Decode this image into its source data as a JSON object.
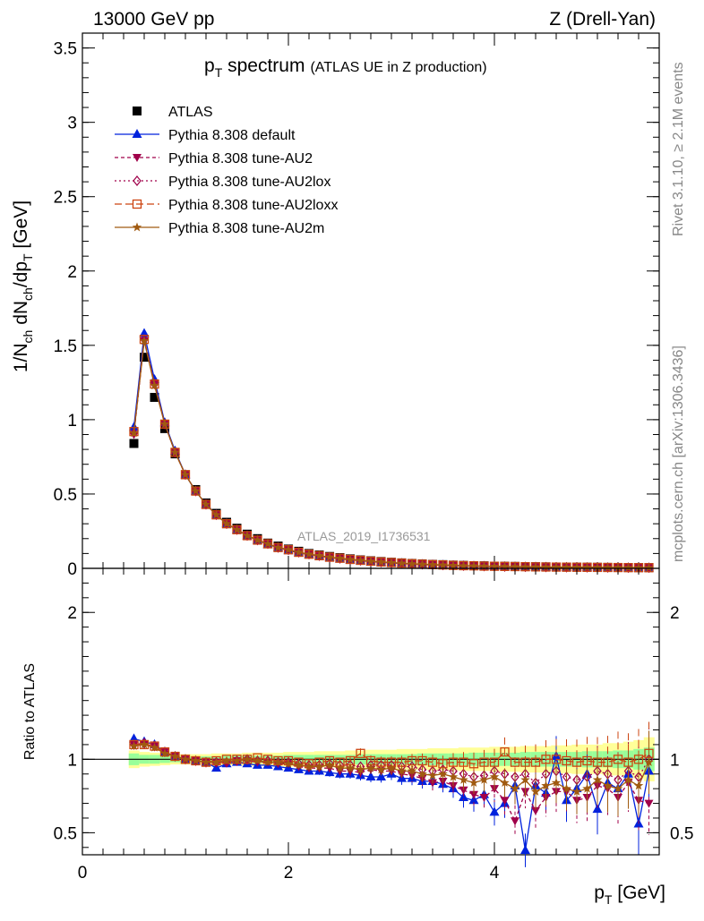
{
  "header": {
    "left": "13000 GeV pp",
    "right": "Z (Drell-Yan)"
  },
  "side_labels": {
    "rivet": "Rivet 3.1.10, ≥ 2.1M events",
    "mcplots": "mcplots.cern.ch [arXiv:1306.3436]"
  },
  "watermark": "ATLAS_2019_I1736531",
  "ratio_ylabel": "Ratio to ATLAS",
  "colors": {
    "atlas": "#000000",
    "default": "#0022dd",
    "au2": "#a0004a",
    "au2lox": "#a0004a",
    "au2loxx": "#cc4411",
    "au2m": "#a05a10",
    "band_inner": "#99ff99",
    "band_outer": "#ffff99"
  },
  "chart_data": [
    {
      "type": "line",
      "title": "p_T spectrum",
      "title_text": {
        "main": "p",
        "main_sub": "T",
        "main_rest": " spectrum",
        "detail": "(ATLAS UE in Z production)"
      },
      "xlabel": "p_T [GeV]",
      "xlabel_text": {
        "main": "p",
        "sub": "T",
        "rest": " [GeV]"
      },
      "ylabel": "1/N_ch dN_ch/dp_T [GeV]",
      "ylabel_text": {
        "p1": "1/N",
        "s1": "ch",
        "p2": " dN",
        "s2": "ch",
        "p3": "/dp",
        "s3": "T",
        "p4": " [GeV]"
      },
      "xlim": [
        0,
        5.6
      ],
      "ylim": [
        0,
        3.6
      ],
      "xticks": [
        "0",
        "2",
        "4"
      ],
      "yticks": [
        "0",
        "0.5",
        "1",
        "1.5",
        "2",
        "2.5",
        "3",
        "3.5"
      ],
      "legend_placement": "top-left",
      "x": [
        0.5,
        0.6,
        0.7,
        0.8,
        0.9,
        1.0,
        1.1,
        1.2,
        1.3,
        1.4,
        1.5,
        1.6,
        1.7,
        1.8,
        1.9,
        2.0,
        2.1,
        2.2,
        2.3,
        2.4,
        2.5,
        2.6,
        2.7,
        2.8,
        2.9,
        3.0,
        3.1,
        3.2,
        3.3,
        3.4,
        3.5,
        3.6,
        3.7,
        3.8,
        3.9,
        4.0,
        4.1,
        4.2,
        4.3,
        4.4,
        4.5,
        4.6,
        4.7,
        4.8,
        4.9,
        5.0,
        5.1,
        5.2,
        5.3,
        5.4,
        5.5
      ],
      "series": [
        {
          "name": "ATLAS",
          "values": [
            0.84,
            1.42,
            1.15,
            0.94,
            0.77,
            0.63,
            0.53,
            0.44,
            0.37,
            0.31,
            0.27,
            0.23,
            0.2,
            0.17,
            0.15,
            0.13,
            0.115,
            0.1,
            0.09,
            0.08,
            0.072,
            0.064,
            0.057,
            0.051,
            0.046,
            0.041,
            0.037,
            0.033,
            0.03,
            0.027,
            0.025,
            0.022,
            0.02,
            0.018,
            0.017,
            0.015,
            0.014,
            0.013,
            0.012,
            0.011,
            0.01,
            0.009,
            0.0085,
            0.008,
            0.0075,
            0.007,
            0.0065,
            0.006,
            0.0055,
            0.005,
            0.0048
          ]
        },
        {
          "name": "Pythia 8.308 default",
          "values": [
            0.95,
            1.58,
            1.27,
            0.98,
            0.79,
            0.63,
            0.52,
            0.43,
            0.36,
            0.3,
            0.26,
            0.22,
            0.19,
            0.16,
            0.14,
            0.12,
            0.105,
            0.092,
            0.082,
            0.072,
            0.064,
            0.057,
            0.051,
            0.045,
            0.04,
            0.036,
            0.032,
            0.029,
            0.026,
            0.023,
            0.021,
            0.018,
            0.016,
            0.015,
            0.013,
            0.012,
            0.011,
            0.01,
            0.009,
            0.008,
            0.0075,
            0.007,
            0.0065,
            0.006,
            0.0055,
            0.005,
            0.0048,
            0.0045,
            0.004,
            0.0038,
            0.0035
          ]
        },
        {
          "name": "Pythia 8.308 tune-AU2",
          "values": [
            0.9,
            1.53,
            1.24,
            0.97,
            0.78,
            0.63,
            0.52,
            0.43,
            0.36,
            0.3,
            0.26,
            0.22,
            0.19,
            0.165,
            0.14,
            0.125,
            0.108,
            0.095,
            0.085,
            0.075,
            0.067,
            0.059,
            0.053,
            0.047,
            0.042,
            0.038,
            0.034,
            0.03,
            0.027,
            0.024,
            0.022,
            0.019,
            0.017,
            0.016,
            0.014,
            0.013,
            0.012,
            0.011,
            0.01,
            0.009,
            0.0085,
            0.008,
            0.007,
            0.0065,
            0.006,
            0.0055,
            0.005,
            0.0048,
            0.0045,
            0.004,
            0.0038
          ]
        },
        {
          "name": "Pythia 8.308 tune-AU2lox",
          "values": [
            0.91,
            1.54,
            1.24,
            0.97,
            0.78,
            0.63,
            0.52,
            0.43,
            0.36,
            0.3,
            0.26,
            0.22,
            0.19,
            0.165,
            0.14,
            0.125,
            0.108,
            0.095,
            0.085,
            0.075,
            0.067,
            0.06,
            0.053,
            0.047,
            0.042,
            0.038,
            0.034,
            0.03,
            0.027,
            0.024,
            0.022,
            0.02,
            0.018,
            0.016,
            0.015,
            0.013,
            0.012,
            0.011,
            0.01,
            0.0095,
            0.0088,
            0.008,
            0.0075,
            0.007,
            0.0065,
            0.006,
            0.0055,
            0.005,
            0.0046,
            0.0042,
            0.004
          ]
        },
        {
          "name": "Pythia 8.308 tune-AU2loxx",
          "values": [
            0.92,
            1.54,
            1.24,
            0.97,
            0.78,
            0.63,
            0.52,
            0.43,
            0.36,
            0.3,
            0.26,
            0.22,
            0.19,
            0.165,
            0.14,
            0.125,
            0.108,
            0.095,
            0.085,
            0.075,
            0.068,
            0.06,
            0.054,
            0.048,
            0.043,
            0.039,
            0.035,
            0.031,
            0.028,
            0.025,
            0.023,
            0.02,
            0.018,
            0.017,
            0.015,
            0.014,
            0.013,
            0.012,
            0.011,
            0.01,
            0.009,
            0.0085,
            0.008,
            0.0075,
            0.007,
            0.0065,
            0.006,
            0.0055,
            0.005,
            0.0046,
            0.0044
          ]
        },
        {
          "name": "Pythia 8.308 tune-AU2m",
          "values": [
            0.91,
            1.53,
            1.23,
            0.97,
            0.78,
            0.63,
            0.52,
            0.43,
            0.36,
            0.3,
            0.26,
            0.22,
            0.19,
            0.165,
            0.14,
            0.125,
            0.108,
            0.095,
            0.085,
            0.075,
            0.067,
            0.059,
            0.053,
            0.047,
            0.042,
            0.038,
            0.034,
            0.03,
            0.027,
            0.024,
            0.022,
            0.019,
            0.017,
            0.016,
            0.014,
            0.013,
            0.012,
            0.011,
            0.01,
            0.009,
            0.0085,
            0.008,
            0.0072,
            0.0068,
            0.0062,
            0.0058,
            0.0053,
            0.005,
            0.0046,
            0.0042,
            0.004
          ]
        }
      ]
    },
    {
      "type": "line",
      "title": "",
      "xlabel": "p_T [GeV]",
      "ylabel": "Ratio to ATLAS",
      "xlim": [
        0,
        5.6
      ],
      "ylim": [
        0.35,
        2.3
      ],
      "xticks": [
        "0",
        "2",
        "4"
      ],
      "yticks": [
        "0.5",
        "1",
        "2"
      ],
      "reference_line": 1,
      "x": [
        0.5,
        0.6,
        0.7,
        0.8,
        0.9,
        1.0,
        1.1,
        1.2,
        1.3,
        1.4,
        1.5,
        1.6,
        1.7,
        1.8,
        1.9,
        2.0,
        2.1,
        2.2,
        2.3,
        2.4,
        2.5,
        2.6,
        2.7,
        2.8,
        2.9,
        3.0,
        3.1,
        3.2,
        3.3,
        3.4,
        3.5,
        3.6,
        3.7,
        3.8,
        3.9,
        4.0,
        4.1,
        4.2,
        4.3,
        4.4,
        4.5,
        4.6,
        4.7,
        4.8,
        4.9,
        5.0,
        5.1,
        5.2,
        5.3,
        5.4,
        5.5
      ],
      "band_inner_halfwidth": [
        0.04,
        0.03,
        0.03,
        0.025,
        0.02,
        0.02,
        0.02,
        0.02,
        0.02,
        0.025,
        0.025,
        0.025,
        0.025,
        0.025,
        0.025,
        0.03,
        0.03,
        0.03,
        0.03,
        0.03,
        0.03,
        0.03,
        0.035,
        0.035,
        0.035,
        0.035,
        0.035,
        0.035,
        0.04,
        0.04,
        0.04,
        0.04,
        0.04,
        0.045,
        0.045,
        0.045,
        0.045,
        0.045,
        0.05,
        0.05,
        0.05,
        0.05,
        0.05,
        0.05,
        0.055,
        0.055,
        0.055,
        0.06,
        0.06,
        0.07,
        0.08
      ],
      "band_outer_halfwidth": [
        0.06,
        0.05,
        0.045,
        0.04,
        0.035,
        0.035,
        0.035,
        0.035,
        0.04,
        0.04,
        0.04,
        0.045,
        0.045,
        0.045,
        0.045,
        0.05,
        0.05,
        0.05,
        0.055,
        0.055,
        0.055,
        0.06,
        0.06,
        0.065,
        0.065,
        0.065,
        0.07,
        0.07,
        0.07,
        0.075,
        0.075,
        0.075,
        0.08,
        0.08,
        0.08,
        0.085,
        0.085,
        0.085,
        0.09,
        0.09,
        0.09,
        0.095,
        0.095,
        0.1,
        0.1,
        0.1,
        0.11,
        0.11,
        0.12,
        0.13,
        0.15
      ],
      "series": [
        {
          "name": "Pythia 8.308 default",
          "values": [
            1.14,
            1.12,
            1.1,
            1.05,
            1.02,
            1.0,
            0.99,
            0.98,
            0.94,
            0.97,
            0.98,
            0.97,
            0.96,
            0.96,
            0.95,
            0.94,
            0.93,
            0.92,
            0.92,
            0.91,
            0.9,
            0.9,
            0.89,
            0.88,
            0.88,
            0.9,
            0.87,
            0.87,
            0.85,
            0.85,
            0.83,
            0.8,
            0.74,
            0.72,
            0.76,
            0.64,
            0.7,
            0.82,
            0.38,
            0.82,
            0.77,
            1.02,
            0.72,
            0.8,
            0.9,
            0.66,
            0.84,
            0.8,
            0.9,
            0.56,
            0.92
          ]
        },
        {
          "name": "Pythia 8.308 tune-AU2",
          "values": [
            1.1,
            1.1,
            1.09,
            1.05,
            1.02,
            1.0,
            0.99,
            0.98,
            0.98,
            0.98,
            0.99,
            0.99,
            0.98,
            0.98,
            0.97,
            0.97,
            0.95,
            0.94,
            0.94,
            0.94,
            0.92,
            0.92,
            0.91,
            0.93,
            0.92,
            0.92,
            0.9,
            0.89,
            0.87,
            0.84,
            0.85,
            0.82,
            0.79,
            0.76,
            0.74,
            0.8,
            0.72,
            0.58,
            0.78,
            0.65,
            0.74,
            0.78,
            0.78,
            0.72,
            0.74,
            0.82,
            0.8,
            0.74,
            0.84,
            0.72,
            0.7
          ]
        },
        {
          "name": "Pythia 8.308 tune-AU2lox",
          "values": [
            1.1,
            1.11,
            1.09,
            1.05,
            1.02,
            1.0,
            0.99,
            0.98,
            0.98,
            0.98,
            0.99,
            1.0,
            0.99,
            0.99,
            0.98,
            0.98,
            0.97,
            0.96,
            0.96,
            0.97,
            0.96,
            0.96,
            0.95,
            0.96,
            0.96,
            0.96,
            0.95,
            0.95,
            0.93,
            0.92,
            0.93,
            0.92,
            0.9,
            0.88,
            0.89,
            0.92,
            0.9,
            0.88,
            0.9,
            0.84,
            0.9,
            0.92,
            0.88,
            0.86,
            0.88,
            0.92,
            0.9,
            0.86,
            0.92,
            0.88,
            1.0
          ]
        },
        {
          "name": "Pythia 8.308 tune-AU2loxx",
          "values": [
            1.1,
            1.1,
            1.09,
            1.05,
            1.02,
            1.0,
            0.99,
            0.98,
            0.99,
            1.0,
            1.0,
            1.0,
            1.01,
            1.0,
            0.99,
            0.99,
            0.98,
            0.97,
            0.98,
            0.99,
            0.98,
            0.99,
            1.04,
            0.99,
            0.98,
            0.98,
            0.98,
            0.99,
            0.99,
            0.98,
            0.97,
            0.98,
            0.98,
            0.97,
            0.98,
            0.98,
            1.05,
            0.98,
            0.98,
            0.98,
            1.0,
            1.0,
            0.99,
            0.98,
            0.99,
            0.98,
            0.98,
            1.0,
            0.98,
            1.0,
            1.04
          ]
        },
        {
          "name": "Pythia 8.308 tune-AU2m",
          "values": [
            1.09,
            1.1,
            1.08,
            1.04,
            1.02,
            1.0,
            0.99,
            0.98,
            0.98,
            0.99,
            0.99,
            1.0,
            0.99,
            0.98,
            0.98,
            0.97,
            0.96,
            0.95,
            0.95,
            0.96,
            0.94,
            0.94,
            0.93,
            0.94,
            0.93,
            0.94,
            0.92,
            0.92,
            0.9,
            0.89,
            0.9,
            0.88,
            0.86,
            0.84,
            0.86,
            0.88,
            0.84,
            0.8,
            0.86,
            0.78,
            0.82,
            0.84,
            0.8,
            0.78,
            0.8,
            0.86,
            0.82,
            0.8,
            0.86,
            0.82,
            0.98
          ]
        }
      ]
    }
  ]
}
